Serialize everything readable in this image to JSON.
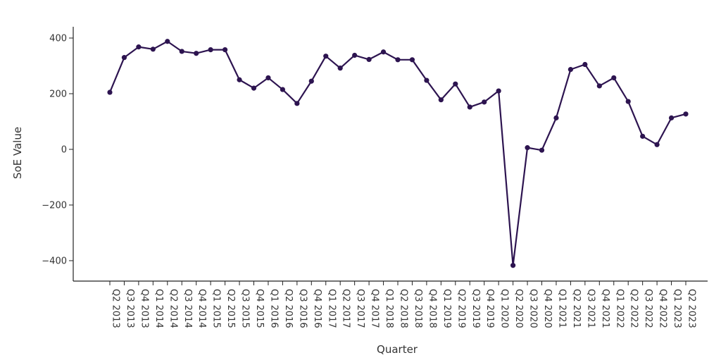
{
  "chart_data": {
    "type": "line",
    "title": "",
    "xlabel": "Quarter",
    "ylabel": "SoE Value",
    "ylim": [
      -480,
      445
    ],
    "yticks": [
      -400,
      -200,
      0,
      200,
      400
    ],
    "ytick_labels": [
      "−400",
      "−200",
      "0",
      "200",
      "400"
    ],
    "grid": false,
    "legend": "none",
    "colors": {
      "line": "#2d1450",
      "marker": "#2d1450",
      "axis": "#222222",
      "text": "#333333"
    },
    "categories": [
      "Q2 2013",
      "Q3 2013",
      "Q4 2013",
      "Q1 2014",
      "Q2 2014",
      "Q3 2014",
      "Q4 2014",
      "Q1 2015",
      "Q2 2015",
      "Q3 2015",
      "Q4 2015",
      "Q1 2016",
      "Q2 2016",
      "Q3 2016",
      "Q4 2016",
      "Q1 2017",
      "Q2 2017",
      "Q3 2017",
      "Q4 2017",
      "Q1 2018",
      "Q2 2018",
      "Q3 2018",
      "Q4 2018",
      "Q1 2019",
      "Q2 2019",
      "Q3 2019",
      "Q4 2019",
      "Q1 2020",
      "Q2 2020",
      "Q3 2020",
      "Q4 2020",
      "Q1 2021",
      "Q2 2021",
      "Q3 2021",
      "Q4 2021",
      "Q1 2022",
      "Q2 2022",
      "Q3 2022",
      "Q4 2022",
      "Q1 2023",
      "Q2 2023"
    ],
    "series": [
      {
        "values": [
          205,
          330,
          368,
          360,
          388,
          352,
          345,
          358,
          358,
          250,
          220,
          257,
          215,
          165,
          245,
          335,
          292,
          338,
          323,
          350,
          322,
          322,
          248,
          178,
          235,
          152,
          170,
          210,
          -417,
          6,
          -3,
          113,
          287,
          305,
          228,
          257,
          172,
          47,
          17,
          113,
          127
        ]
      }
    ]
  }
}
